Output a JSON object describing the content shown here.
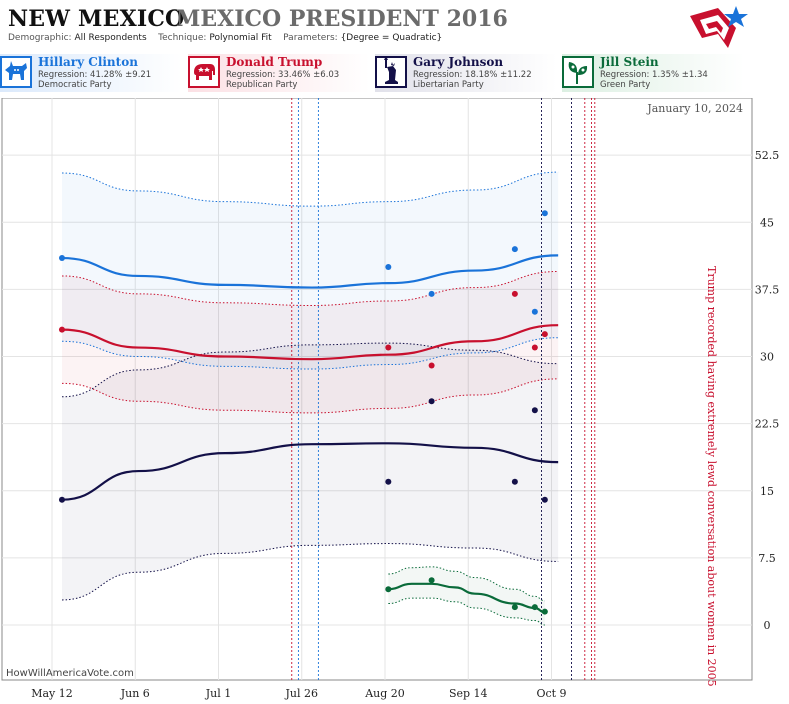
{
  "header": {
    "state": "NEW MEXICO",
    "title": "MEXICO PRESIDENT 2016",
    "demographic_label": "Demographic:",
    "demographic_value": "All Respondents",
    "technique_label": "Technique:",
    "technique_value": "Polynomial Fit",
    "parameters_label": "Parameters:",
    "parameters_value": "{Degree = Quadratic}"
  },
  "candidates": [
    {
      "name": "Hillary Clinton",
      "regression": "Regression: 41.28% ±9.21",
      "party": "Democratic Party",
      "color": "#1a73d9",
      "icon": "donkey-icon"
    },
    {
      "name": "Donald Trump",
      "regression": "Regression: 33.46% ±6.03",
      "party": "Republican Party",
      "color": "#c8102e",
      "icon": "elephant-icon"
    },
    {
      "name": "Gary Johnson",
      "regression": "Regression: 18.18% ±11.22",
      "party": "Libertarian Party",
      "color": "#131048",
      "icon": "statue-of-liberty-icon"
    },
    {
      "name": "Jill Stein",
      "regression": "Regression: 1.35% ±1.34",
      "party": "Green Party",
      "color": "#0a6b3a",
      "icon": "leaf-icon"
    }
  ],
  "footer": "HowWillAmericaVote.com",
  "chart_data": {
    "type": "scatter",
    "x_ticks": [
      "May 12",
      "Jun 6",
      "Jul 1",
      "Jul 26",
      "Aug 20",
      "Sep 14",
      "Oct 9"
    ],
    "x_range_days": [
      0,
      153
    ],
    "y_ticks": [
      "0",
      "7.5",
      "15",
      "22.5",
      "30",
      "37.5",
      "45",
      "52.5"
    ],
    "ylim": [
      -3,
      59
    ],
    "date_label": "January 10, 2024",
    "annotation": "Trump recorded having extremely lewd conversation about women in 2005",
    "event_lines": [
      {
        "day": 72,
        "color": "#c8102e"
      },
      {
        "day": 74,
        "color": "#1a73d9"
      },
      {
        "day": 80,
        "color": "#1a73d9"
      },
      {
        "day": 147,
        "color": "#131048"
      },
      {
        "day": 156,
        "color": "#131048"
      },
      {
        "day": 160,
        "color": "#c8102e"
      },
      {
        "day": 162,
        "color": "#c8102e"
      },
      {
        "day": 163,
        "color": "#c8102e"
      }
    ],
    "series": [
      {
        "name": "Hillary Clinton",
        "color": "#1a73d9",
        "fit": [
          [
            3,
            41
          ],
          [
            26,
            39
          ],
          [
            52,
            38
          ],
          [
            78,
            37.7
          ],
          [
            101,
            38.2
          ],
          [
            127,
            39.6
          ],
          [
            152,
            41.3
          ]
        ],
        "band_upper": [
          [
            3,
            50.5
          ],
          [
            26,
            48.5
          ],
          [
            52,
            47.3
          ],
          [
            78,
            46.8
          ],
          [
            101,
            47.3
          ],
          [
            127,
            48.6
          ],
          [
            152,
            50.6
          ]
        ],
        "band_lower": [
          [
            3,
            31.7
          ],
          [
            26,
            30
          ],
          [
            52,
            28.9
          ],
          [
            78,
            28.6
          ],
          [
            101,
            29.1
          ],
          [
            127,
            30.4
          ],
          [
            152,
            32.1
          ]
        ],
        "points": [
          [
            3,
            41
          ],
          [
            101,
            40
          ],
          [
            114,
            37
          ],
          [
            139,
            42
          ],
          [
            145,
            35
          ],
          [
            148,
            46
          ]
        ]
      },
      {
        "name": "Donald Trump",
        "color": "#c8102e",
        "fit": [
          [
            3,
            33
          ],
          [
            26,
            31
          ],
          [
            52,
            30
          ],
          [
            78,
            29.7
          ],
          [
            101,
            30.2
          ],
          [
            127,
            31.7
          ],
          [
            152,
            33.5
          ]
        ],
        "band_upper": [
          [
            3,
            39
          ],
          [
            26,
            37
          ],
          [
            52,
            36
          ],
          [
            78,
            35.7
          ],
          [
            101,
            36.2
          ],
          [
            127,
            37.7
          ],
          [
            152,
            39.5
          ]
        ],
        "band_lower": [
          [
            3,
            27
          ],
          [
            26,
            25
          ],
          [
            52,
            24
          ],
          [
            78,
            23.7
          ],
          [
            101,
            24.2
          ],
          [
            127,
            25.7
          ],
          [
            152,
            27.5
          ]
        ],
        "points": [
          [
            3,
            33
          ],
          [
            101,
            31
          ],
          [
            114,
            29
          ],
          [
            139,
            37
          ],
          [
            145,
            31
          ],
          [
            148,
            32.5
          ]
        ]
      },
      {
        "name": "Gary Johnson",
        "color": "#131048",
        "fit": [
          [
            3,
            14
          ],
          [
            26,
            17.2
          ],
          [
            52,
            19.2
          ],
          [
            78,
            20.2
          ],
          [
            101,
            20.3
          ],
          [
            127,
            19.8
          ],
          [
            152,
            18.2
          ]
        ],
        "band_upper": [
          [
            3,
            25.5
          ],
          [
            26,
            28.5
          ],
          [
            52,
            30.5
          ],
          [
            78,
            31.3
          ],
          [
            101,
            31.5
          ],
          [
            127,
            30.7
          ],
          [
            152,
            29.2
          ]
        ],
        "band_lower": [
          [
            3,
            2.8
          ],
          [
            26,
            5.9
          ],
          [
            52,
            8
          ],
          [
            78,
            8.9
          ],
          [
            101,
            9.1
          ],
          [
            127,
            8.6
          ],
          [
            152,
            7.1
          ]
        ],
        "points": [
          [
            3,
            14
          ],
          [
            101,
            16
          ],
          [
            114,
            25
          ],
          [
            139,
            16
          ],
          [
            145,
            24
          ],
          [
            148,
            14
          ]
        ]
      },
      {
        "name": "Jill Stein",
        "color": "#0a6b3a",
        "fit": [
          [
            101,
            4
          ],
          [
            108,
            4.6
          ],
          [
            114,
            4.6
          ],
          [
            121,
            4.2
          ],
          [
            127,
            3.5
          ],
          [
            139,
            2.4
          ],
          [
            145,
            1.9
          ],
          [
            148,
            1.4
          ]
        ],
        "band_upper": [
          [
            101,
            5.7
          ],
          [
            108,
            6.4
          ],
          [
            114,
            6.5
          ],
          [
            121,
            6
          ],
          [
            127,
            5.3
          ],
          [
            139,
            4
          ],
          [
            145,
            3.2
          ],
          [
            148,
            2.7
          ]
        ],
        "band_lower": [
          [
            101,
            2.4
          ],
          [
            108,
            3
          ],
          [
            114,
            3
          ],
          [
            121,
            2.6
          ],
          [
            127,
            1.9
          ],
          [
            139,
            0.8
          ],
          [
            145,
            0.5
          ],
          [
            148,
            0
          ]
        ],
        "points": [
          [
            101,
            4
          ],
          [
            114,
            5
          ],
          [
            139,
            2
          ],
          [
            145,
            2
          ],
          [
            148,
            1.5
          ]
        ]
      }
    ]
  }
}
